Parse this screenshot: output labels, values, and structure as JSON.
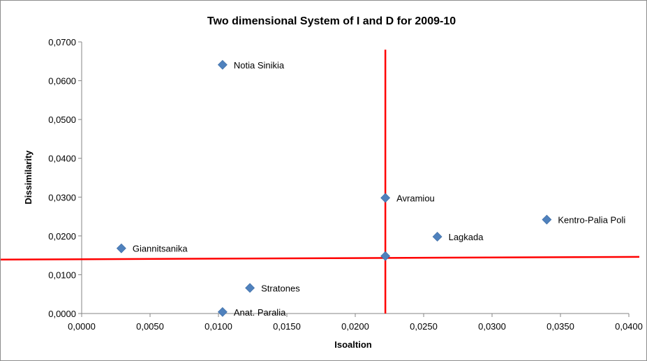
{
  "chart_data": {
    "type": "scatter",
    "title": "Two dimensional System of I and D for 2009-10",
    "xlabel": "Isoaltion",
    "ylabel": "Dissimilarity",
    "xlim": [
      0,
      0.04
    ],
    "ylim": [
      0,
      0.07
    ],
    "x_ticks": [
      "0,0000",
      "0,0050",
      "0,0100",
      "0,0150",
      "0,0200",
      "0,0250",
      "0,0300",
      "0,0350",
      "0,0400"
    ],
    "y_ticks": [
      "0,0000",
      "0,0100",
      "0,0200",
      "0,0300",
      "0,0400",
      "0,0500",
      "0,0600",
      "0,0700"
    ],
    "grid": false,
    "legend": "none",
    "marker_color": "#4f81bd",
    "points": [
      {
        "label": "Notia Sinikia",
        "x": 0.0103,
        "y": 0.0641
      },
      {
        "label": "Avramiou",
        "x": 0.0222,
        "y": 0.0298
      },
      {
        "label": "Kentro-Palia Poli",
        "x": 0.034,
        "y": 0.0242
      },
      {
        "label": "Lagkada",
        "x": 0.026,
        "y": 0.0198
      },
      {
        "label": "Giannitsanika",
        "x": 0.0029,
        "y": 0.0168
      },
      {
        "label": "",
        "x": 0.0222,
        "y": 0.0148
      },
      {
        "label": "Stratones",
        "x": 0.0123,
        "y": 0.0066
      },
      {
        "label": "Anat. Paralia",
        "x": 0.0103,
        "y": 0.0004
      }
    ],
    "reference_lines": {
      "color": "#ff0000",
      "vertical": {
        "x": 0.0222,
        "y_range": [
          0,
          0.068
        ]
      },
      "horizontal": {
        "x_range": [
          0,
          0.04
        ],
        "y_start": 0.0139,
        "y_end": 0.0146
      }
    }
  }
}
